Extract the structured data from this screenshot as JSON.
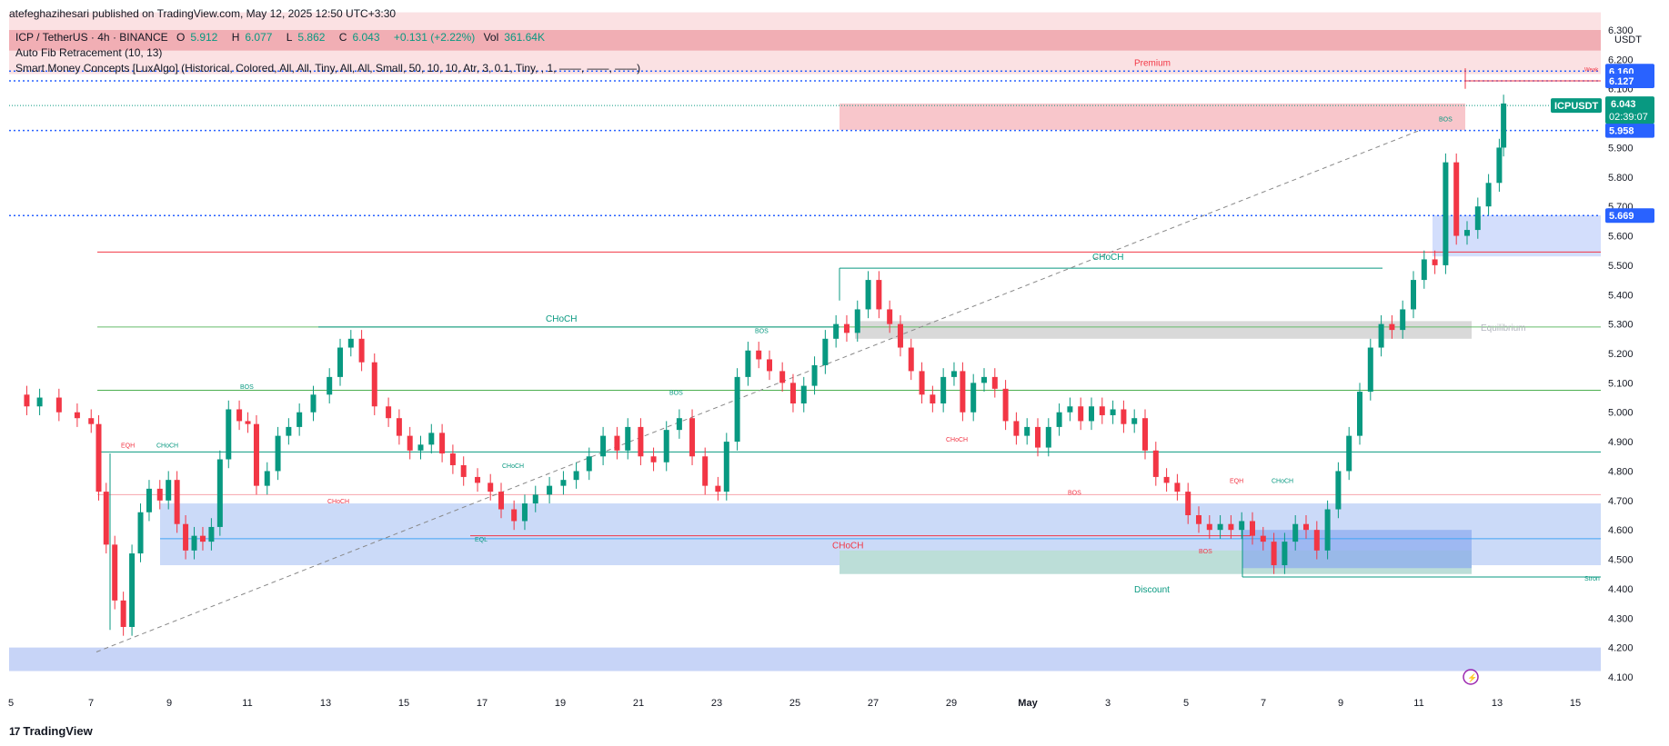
{
  "header": {
    "published": "atefeghazihesari published on TradingView.com, May 12, 2025 12:50 UTC+3:30"
  },
  "legend": {
    "symbol": "ICP / TetherUS · 4h · BINANCE",
    "o_label": "O",
    "o": "5.912",
    "h_label": "H",
    "h": "6.077",
    "l_label": "L",
    "l": "5.862",
    "c_label": "C",
    "c": "6.043",
    "change": "+0.131 (+2.22%)",
    "vol_label": "Vol",
    "vol": "361.64K",
    "indicator1": "Auto Fib Retracement (10, 13)",
    "indicator2": "Smart Money Concepts [LuxAlgo] (Historical, Colored, All, All, Tiny, All, All, Small, 50, 10, 10, Atr, 3, 0.1, Tiny, , 1, ——, ——, ——)"
  },
  "axis": {
    "currency": "USDT",
    "price_labels": [
      "6.300",
      "6.200",
      "6.100",
      "6.000",
      "5.900",
      "5.800",
      "5.700",
      "5.600",
      "5.500",
      "5.400",
      "5.300",
      "5.200",
      "5.100",
      "5.000",
      "4.900",
      "4.800",
      "4.700",
      "4.600",
      "4.500",
      "4.400",
      "4.300",
      "4.200",
      "4.100"
    ],
    "date_labels": [
      "5",
      "7",
      "9",
      "11",
      "13",
      "15",
      "17",
      "19",
      "21",
      "23",
      "25",
      "27",
      "29",
      "May",
      "3",
      "5",
      "7",
      "9",
      "11",
      "13",
      "15"
    ]
  },
  "badges": {
    "p1": "6.160",
    "p2": "6.127",
    "ticker": "ICPUSDT",
    "last": "6.043",
    "countdown": "02:39:07",
    "p3": "5.958",
    "p4": "5.669"
  },
  "annotations": {
    "premium": "Premium",
    "equilibrium": "Equilibrium",
    "discount": "Discount",
    "choch_big_green": "CHoCH",
    "choch_big_red": "CHoCH",
    "choch_top": "CHoCH",
    "bos": "BOS",
    "choch_small": "CHoCH",
    "eqh": "EQH",
    "eql": "EQL",
    "strong": "Stron",
    "weak": "Weak"
  },
  "footer": {
    "brand": "TradingView"
  },
  "colors": {
    "up": "#089981",
    "down": "#f23645",
    "blue": "#2962ff",
    "premium_zone": "#f8bbc0",
    "discount_zone": "#b2c6f5"
  },
  "chart_data": {
    "type": "candlestick",
    "title": "ICP / TetherUS · 4h · BINANCE",
    "ylim": [
      4.07,
      6.37
    ],
    "x_ticks": [
      "5",
      "7",
      "9",
      "11",
      "13",
      "15",
      "17",
      "19",
      "21",
      "23",
      "25",
      "27",
      "29",
      "May",
      "3",
      "5",
      "7",
      "9",
      "11",
      "13",
      "15"
    ],
    "series_path": [
      [
        0,
        5.06
      ],
      [
        8,
        5.02
      ],
      [
        20,
        5.05
      ],
      [
        38,
        5.0
      ],
      [
        55,
        4.98
      ],
      [
        68,
        4.96
      ],
      [
        75,
        4.73
      ],
      [
        82,
        4.55
      ],
      [
        90,
        4.36
      ],
      [
        98,
        4.27
      ],
      [
        106,
        4.52
      ],
      [
        114,
        4.66
      ],
      [
        122,
        4.74
      ],
      [
        132,
        4.7
      ],
      [
        140,
        4.77
      ],
      [
        148,
        4.62
      ],
      [
        156,
        4.53
      ],
      [
        164,
        4.58
      ],
      [
        172,
        4.56
      ],
      [
        180,
        4.61
      ],
      [
        188,
        4.84
      ],
      [
        196,
        5.01
      ],
      [
        206,
        4.97
      ],
      [
        214,
        4.96
      ],
      [
        222,
        4.75
      ],
      [
        232,
        4.8
      ],
      [
        242,
        4.92
      ],
      [
        252,
        4.95
      ],
      [
        262,
        5.0
      ],
      [
        275,
        5.06
      ],
      [
        290,
        5.12
      ],
      [
        300,
        5.22
      ],
      [
        310,
        5.25
      ],
      [
        320,
        5.17
      ],
      [
        332,
        5.02
      ],
      [
        345,
        4.98
      ],
      [
        355,
        4.92
      ],
      [
        365,
        4.87
      ],
      [
        375,
        4.89
      ],
      [
        385,
        4.93
      ],
      [
        395,
        4.86
      ],
      [
        405,
        4.82
      ],
      [
        415,
        4.78
      ],
      [
        428,
        4.76
      ],
      [
        440,
        4.73
      ],
      [
        450,
        4.67
      ],
      [
        462,
        4.63
      ],
      [
        472,
        4.69
      ],
      [
        482,
        4.72
      ],
      [
        495,
        4.75
      ],
      [
        508,
        4.77
      ],
      [
        520,
        4.8
      ],
      [
        532,
        4.85
      ],
      [
        545,
        4.92
      ],
      [
        558,
        4.87
      ],
      [
        568,
        4.95
      ],
      [
        580,
        4.85
      ],
      [
        592,
        4.83
      ],
      [
        604,
        4.94
      ],
      [
        616,
        4.98
      ],
      [
        628,
        4.85
      ],
      [
        640,
        4.75
      ],
      [
        652,
        4.73
      ],
      [
        660,
        4.9
      ],
      [
        670,
        5.12
      ],
      [
        680,
        5.21
      ],
      [
        690,
        5.18
      ],
      [
        700,
        5.14
      ],
      [
        712,
        5.1
      ],
      [
        722,
        5.03
      ],
      [
        732,
        5.09
      ],
      [
        742,
        5.16
      ],
      [
        752,
        5.25
      ],
      [
        762,
        5.3
      ],
      [
        772,
        5.27
      ],
      [
        782,
        5.35
      ],
      [
        792,
        5.45
      ],
      [
        802,
        5.35
      ],
      [
        812,
        5.3
      ],
      [
        822,
        5.22
      ],
      [
        832,
        5.14
      ],
      [
        842,
        5.06
      ],
      [
        852,
        5.03
      ],
      [
        862,
        5.12
      ],
      [
        872,
        5.14
      ],
      [
        880,
        5.0
      ],
      [
        890,
        5.1
      ],
      [
        900,
        5.12
      ],
      [
        910,
        5.08
      ],
      [
        920,
        4.97
      ],
      [
        930,
        4.92
      ],
      [
        940,
        4.95
      ],
      [
        950,
        4.88
      ],
      [
        960,
        4.95
      ],
      [
        970,
        5.0
      ],
      [
        980,
        5.02
      ],
      [
        990,
        4.97
      ],
      [
        1000,
        5.02
      ],
      [
        1010,
        4.99
      ],
      [
        1020,
        5.01
      ],
      [
        1030,
        4.96
      ],
      [
        1040,
        4.98
      ],
      [
        1050,
        4.87
      ],
      [
        1060,
        4.78
      ],
      [
        1070,
        4.76
      ],
      [
        1080,
        4.73
      ],
      [
        1090,
        4.65
      ],
      [
        1100,
        4.62
      ],
      [
        1110,
        4.6
      ],
      [
        1120,
        4.62
      ],
      [
        1130,
        4.6
      ],
      [
        1140,
        4.63
      ],
      [
        1150,
        4.58
      ],
      [
        1160,
        4.56
      ],
      [
        1170,
        4.48
      ],
      [
        1180,
        4.56
      ],
      [
        1190,
        4.62
      ],
      [
        1200,
        4.6
      ],
      [
        1210,
        4.53
      ],
      [
        1220,
        4.67
      ],
      [
        1230,
        4.8
      ],
      [
        1240,
        4.92
      ],
      [
        1250,
        5.07
      ],
      [
        1260,
        5.22
      ],
      [
        1270,
        5.3
      ],
      [
        1280,
        5.28
      ],
      [
        1290,
        5.35
      ],
      [
        1300,
        5.45
      ],
      [
        1310,
        5.52
      ],
      [
        1320,
        5.5
      ],
      [
        1330,
        5.85
      ],
      [
        1340,
        5.6
      ],
      [
        1350,
        5.62
      ],
      [
        1360,
        5.7
      ],
      [
        1370,
        5.78
      ],
      [
        1380,
        5.9
      ],
      [
        1384,
        6.05
      ]
    ],
    "levels": {
      "premium_top": 6.36,
      "premium_bottom": 6.15,
      "equilibrium": 5.29,
      "discount_top": 4.52,
      "discount_bottom": 4.44,
      "last_price": 6.043
    }
  }
}
